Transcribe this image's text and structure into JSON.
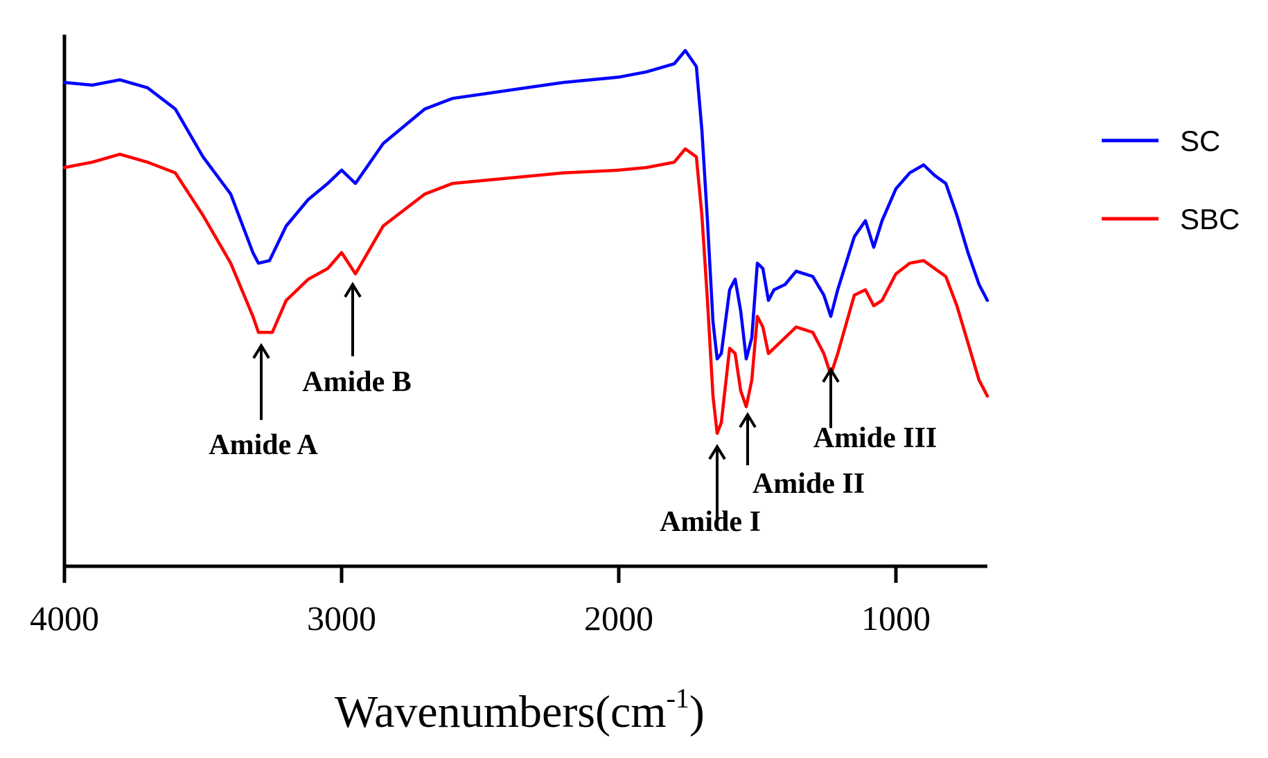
{
  "chart_data": {
    "type": "line",
    "xlabel_main": "Wavenumbers(cm",
    "xlabel_sup": "-1",
    "xlabel_tail": ")",
    "ylabel": "",
    "xlim": [
      4000,
      670
    ],
    "x_reversed": true,
    "y_axis_ticks_shown": false,
    "x_ticks": [
      4000,
      3000,
      2000,
      1000
    ],
    "x_tick_labels": [
      "4000",
      "3000",
      "2000",
      "1000"
    ],
    "legend_position": "right",
    "series": [
      {
        "name": "SC",
        "color": "#0000ff",
        "points": [
          [
            4000,
            0.91
          ],
          [
            3900,
            0.905
          ],
          [
            3800,
            0.915
          ],
          [
            3700,
            0.9
          ],
          [
            3600,
            0.86
          ],
          [
            3500,
            0.77
          ],
          [
            3400,
            0.7
          ],
          [
            3320,
            0.59
          ],
          [
            3300,
            0.57
          ],
          [
            3260,
            0.575
          ],
          [
            3200,
            0.64
          ],
          [
            3120,
            0.69
          ],
          [
            3050,
            0.72
          ],
          [
            3000,
            0.745
          ],
          [
            2950,
            0.72
          ],
          [
            2850,
            0.795
          ],
          [
            2700,
            0.86
          ],
          [
            2600,
            0.88
          ],
          [
            2400,
            0.895
          ],
          [
            2200,
            0.91
          ],
          [
            2000,
            0.92
          ],
          [
            1900,
            0.93
          ],
          [
            1800,
            0.945
          ],
          [
            1760,
            0.97
          ],
          [
            1720,
            0.94
          ],
          [
            1700,
            0.82
          ],
          [
            1680,
            0.65
          ],
          [
            1660,
            0.46
          ],
          [
            1645,
            0.39
          ],
          [
            1630,
            0.4
          ],
          [
            1600,
            0.52
          ],
          [
            1580,
            0.54
          ],
          [
            1560,
            0.48
          ],
          [
            1540,
            0.39
          ],
          [
            1520,
            0.43
          ],
          [
            1500,
            0.57
          ],
          [
            1480,
            0.56
          ],
          [
            1460,
            0.5
          ],
          [
            1440,
            0.52
          ],
          [
            1400,
            0.53
          ],
          [
            1360,
            0.555
          ],
          [
            1300,
            0.545
          ],
          [
            1260,
            0.51
          ],
          [
            1235,
            0.47
          ],
          [
            1210,
            0.52
          ],
          [
            1150,
            0.62
          ],
          [
            1110,
            0.65
          ],
          [
            1080,
            0.6
          ],
          [
            1050,
            0.65
          ],
          [
            1000,
            0.71
          ],
          [
            950,
            0.74
          ],
          [
            900,
            0.755
          ],
          [
            860,
            0.735
          ],
          [
            820,
            0.72
          ],
          [
            780,
            0.66
          ],
          [
            740,
            0.59
          ],
          [
            700,
            0.53
          ],
          [
            670,
            0.5
          ]
        ]
      },
      {
        "name": "SBC",
        "color": "#ff0000",
        "points": [
          [
            4000,
            0.75
          ],
          [
            3900,
            0.76
          ],
          [
            3800,
            0.775
          ],
          [
            3700,
            0.76
          ],
          [
            3600,
            0.74
          ],
          [
            3500,
            0.66
          ],
          [
            3400,
            0.57
          ],
          [
            3320,
            0.47
          ],
          [
            3300,
            0.44
          ],
          [
            3250,
            0.44
          ],
          [
            3200,
            0.5
          ],
          [
            3120,
            0.54
          ],
          [
            3050,
            0.56
          ],
          [
            3000,
            0.59
          ],
          [
            2950,
            0.55
          ],
          [
            2850,
            0.64
          ],
          [
            2700,
            0.7
          ],
          [
            2600,
            0.72
          ],
          [
            2400,
            0.73
          ],
          [
            2200,
            0.74
          ],
          [
            2000,
            0.745
          ],
          [
            1900,
            0.75
          ],
          [
            1800,
            0.76
          ],
          [
            1760,
            0.785
          ],
          [
            1720,
            0.77
          ],
          [
            1700,
            0.66
          ],
          [
            1680,
            0.5
          ],
          [
            1660,
            0.32
          ],
          [
            1645,
            0.25
          ],
          [
            1630,
            0.27
          ],
          [
            1600,
            0.41
          ],
          [
            1580,
            0.4
          ],
          [
            1560,
            0.33
          ],
          [
            1540,
            0.3
          ],
          [
            1520,
            0.35
          ],
          [
            1500,
            0.47
          ],
          [
            1480,
            0.45
          ],
          [
            1460,
            0.4
          ],
          [
            1440,
            0.41
          ],
          [
            1400,
            0.43
          ],
          [
            1360,
            0.45
          ],
          [
            1300,
            0.44
          ],
          [
            1260,
            0.4
          ],
          [
            1235,
            0.36
          ],
          [
            1210,
            0.4
          ],
          [
            1150,
            0.51
          ],
          [
            1110,
            0.52
          ],
          [
            1080,
            0.49
          ],
          [
            1050,
            0.5
          ],
          [
            1000,
            0.55
          ],
          [
            950,
            0.57
          ],
          [
            900,
            0.575
          ],
          [
            860,
            0.56
          ],
          [
            820,
            0.545
          ],
          [
            780,
            0.49
          ],
          [
            740,
            0.42
          ],
          [
            700,
            0.35
          ],
          [
            670,
            0.32
          ]
        ]
      }
    ],
    "annotations": [
      {
        "text": "Amide A",
        "x": 3290,
        "y_arrow_tip": 0.415,
        "y_arrow_tail": 0.275
      },
      {
        "text": "Amide B",
        "x": 2960,
        "y_arrow_tip": 0.53,
        "y_arrow_tail": 0.395
      },
      {
        "text": "Amide I",
        "x": 1645,
        "y_arrow_tip": 0.225,
        "y_arrow_tail": 0.08
      },
      {
        "text": "Amide II",
        "x": 1535,
        "y_arrow_tip": 0.285,
        "y_arrow_tail": 0.19
      },
      {
        "text": "Amide III",
        "x": 1235,
        "y_arrow_tip": 0.37,
        "y_arrow_tail": 0.26
      }
    ]
  }
}
